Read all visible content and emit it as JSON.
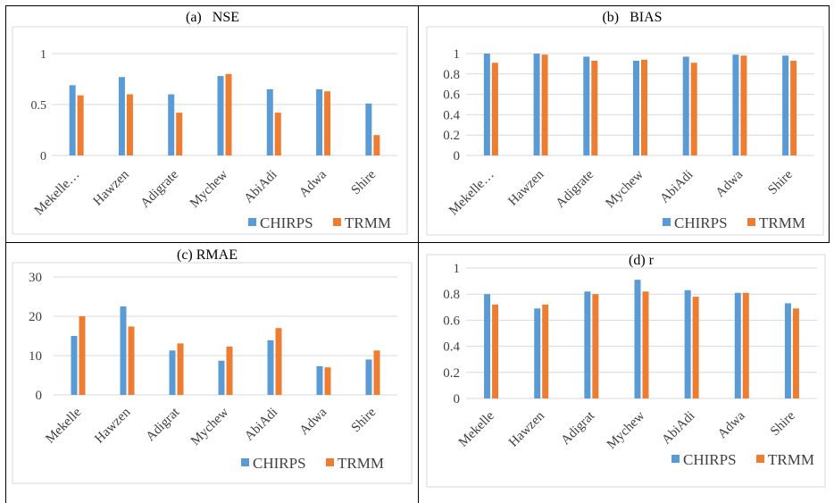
{
  "colors": {
    "chirps": "#5b9bd5",
    "trmm": "#ed7d31",
    "grid": "#d9d9d9",
    "axis_text": "#404040"
  },
  "chart_data": [
    {
      "type": "bar",
      "title": "(a)   NSE",
      "categories": [
        "Mekelle…",
        "Hawzen",
        "Adigrate",
        "Mychew",
        "AbiAdi",
        "Adwa",
        "Shire"
      ],
      "series": [
        {
          "name": "CHIRPS",
          "values": [
            0.69,
            0.77,
            0.6,
            0.78,
            0.65,
            0.65,
            0.51
          ]
        },
        {
          "name": "TRMM",
          "values": [
            0.59,
            0.6,
            0.42,
            0.8,
            0.42,
            0.63,
            0.2
          ]
        }
      ],
      "ylim": [
        0,
        1
      ],
      "yticks": [
        0,
        0.5,
        1
      ],
      "ytick_labels": [
        "0",
        "0.5",
        "1"
      ],
      "grid": true,
      "legend": "bottom-right"
    },
    {
      "type": "bar",
      "title": "(b)   BIAS",
      "categories": [
        "Mekelle…",
        "Hawzen",
        "Adigrate",
        "Mychew",
        "AbiAdi",
        "Adwa",
        "Shire"
      ],
      "series": [
        {
          "name": "CHIRPS",
          "values": [
            1.0,
            1.0,
            0.97,
            0.93,
            0.97,
            0.99,
            0.98
          ]
        },
        {
          "name": "TRMM",
          "values": [
            0.91,
            0.99,
            0.93,
            0.94,
            0.91,
            0.98,
            0.93
          ]
        }
      ],
      "ylim": [
        0,
        1
      ],
      "yticks": [
        0,
        0.2,
        0.4,
        0.6,
        0.8,
        1
      ],
      "ytick_labels": [
        "0",
        "0.2",
        "0.4",
        "0.6",
        "0.8",
        "1"
      ],
      "grid": true,
      "legend": "bottom-right"
    },
    {
      "type": "bar",
      "title": "(c) RMAE",
      "categories": [
        "Mekelle",
        "Hawzen",
        "Adigrat",
        "Mychew",
        "AbiAdi",
        "Adwa",
        "Shire"
      ],
      "series": [
        {
          "name": "CHIRPS",
          "values": [
            15.0,
            22.5,
            11.3,
            8.7,
            13.9,
            7.3,
            9.0
          ]
        },
        {
          "name": "TRMM",
          "values": [
            20.0,
            17.4,
            13.1,
            12.3,
            17.0,
            7.0,
            11.3
          ]
        }
      ],
      "ylim": [
        0,
        30
      ],
      "yticks": [
        0,
        10,
        20,
        30
      ],
      "ytick_labels": [
        "0",
        "10",
        "20",
        "30"
      ],
      "grid": true,
      "legend": "bottom-right"
    },
    {
      "type": "bar",
      "title": "(d) r",
      "categories": [
        "Mekelle",
        "Hawzen",
        "Adigrat",
        "Mychew",
        "AbiAdi",
        "Adwa",
        "Shire"
      ],
      "series": [
        {
          "name": "CHIRPS",
          "values": [
            0.8,
            0.69,
            0.82,
            0.91,
            0.83,
            0.81,
            0.73
          ]
        },
        {
          "name": "TRMM",
          "values": [
            0.72,
            0.72,
            0.8,
            0.82,
            0.78,
            0.81,
            0.69
          ]
        }
      ],
      "ylim": [
        0,
        1
      ],
      "yticks": [
        0,
        0.2,
        0.4,
        0.6,
        0.8,
        1
      ],
      "ytick_labels": [
        "0",
        "0.2",
        "0.4",
        "0.6",
        "0.8",
        "1"
      ],
      "grid": true,
      "legend": "bottom-right"
    }
  ]
}
